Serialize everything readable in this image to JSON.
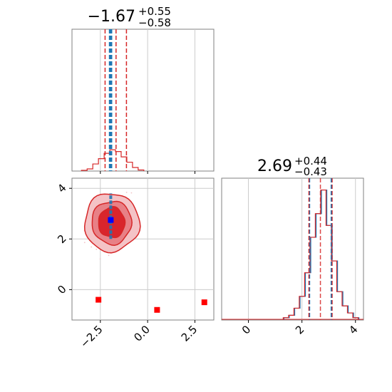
{
  "chart_data": [
    {
      "type": "histogram",
      "panel": "x-marginal",
      "title": {
        "value": "−1.67",
        "plus": "+0.55",
        "minus": "−0.58"
      },
      "xlim": [
        -4.0,
        3.5
      ],
      "x_ticks": [
        "−2.5",
        "0.0",
        "2.5"
      ],
      "grid": true,
      "quantile_lines": {
        "color": "#d62728",
        "values": [
          -2.25,
          -1.67,
          -1.12
        ]
      },
      "blue_lines": {
        "color": "#1f77b4",
        "values": [
          -2.02,
          -1.98,
          -1.94,
          -1.9
        ]
      },
      "red_hist": {
        "bin_edges": [
          -3.5,
          -3.2,
          -2.9,
          -2.6,
          -2.3,
          -2.0,
          -1.7,
          -1.4,
          -1.1,
          -0.8,
          -0.5,
          -0.2
        ],
        "counts": [
          0.2,
          0.6,
          2.0,
          3.5,
          5.0,
          6.0,
          5.5,
          4.0,
          2.5,
          1.0,
          0.3
        ],
        "ylim": [
          0,
          40
        ]
      }
    },
    {
      "type": "scatter",
      "panel": "joint-2d",
      "xlim": [
        -4.0,
        3.5
      ],
      "ylim": [
        -1.2,
        4.4
      ],
      "x_ticks": [
        "−2.5",
        "0.0",
        "2.5"
      ],
      "y_ticks": [
        "0",
        "2",
        "4"
      ],
      "grid": true,
      "contour_center": [
        -1.9,
        2.65
      ],
      "contour_levels": [
        {
          "rx": 1.45,
          "ry": 1.15,
          "fill": "#f4c3c6"
        },
        {
          "rx": 1.05,
          "ry": 0.85,
          "fill": "#e88086"
        },
        {
          "rx": 0.7,
          "ry": 0.6,
          "fill": "#d9252c"
        }
      ],
      "blue_band": {
        "x": -1.95,
        "y_range": [
          2.0,
          3.8
        ],
        "color": "#1f77b4"
      },
      "blue_marker": {
        "x": -1.95,
        "y": 2.75,
        "color": "#0000ff"
      },
      "red_squares": [
        {
          "x": -2.6,
          "y": -0.4
        },
        {
          "x": 0.5,
          "y": -0.8
        },
        {
          "x": 3.0,
          "y": -0.5
        }
      ],
      "red_square_color": "#ff0000"
    },
    {
      "type": "histogram",
      "panel": "y-marginal",
      "title": {
        "value": "2.69",
        "plus": "+0.44",
        "minus": "−0.43"
      },
      "xlim": [
        -1.0,
        4.3
      ],
      "x_ticks": [
        "0",
        "2",
        "4"
      ],
      "grid": true,
      "quantile_lines": {
        "color": "#d62728",
        "values": [
          2.26,
          2.69,
          3.13
        ]
      },
      "blue_lines": {
        "color": "#1f77b4",
        "values": [
          2.28,
          3.1
        ]
      },
      "hist": {
        "bin_edges": [
          1.3,
          1.5,
          1.7,
          1.9,
          2.1,
          2.3,
          2.5,
          2.7,
          2.9,
          3.1,
          3.3,
          3.5,
          3.7,
          3.9,
          4.1
        ],
        "counts": [
          1,
          2,
          5,
          10,
          20,
          35,
          45,
          55,
          40,
          25,
          12,
          6,
          3,
          1
        ],
        "ylim": [
          0,
          60
        ]
      }
    }
  ]
}
